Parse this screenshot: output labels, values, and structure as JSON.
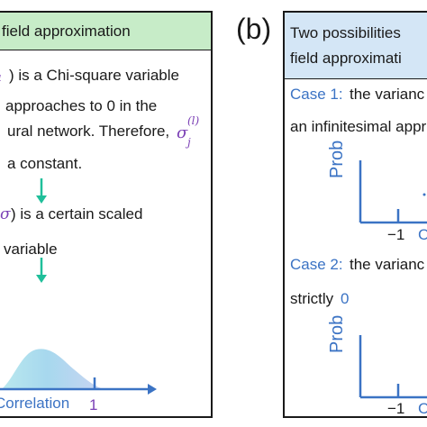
{
  "panel_a": {
    "title": "field approximation",
    "line1_tail": ") is a Chi-square variable",
    "line2": "approaches to 0 in the",
    "line3": "ural network. Therefore,",
    "sigma_lj": "σ",
    "sigma_sup": "(l)",
    "sigma_sub": "j",
    "line4": "a constant.",
    "line5_tail": ") is a certain scaled",
    "line5_sigma": "σ",
    "line6": "variable",
    "x_label": "Correlation",
    "x_tick": "1",
    "arrow_color": "#1fbf9a",
    "axis_color": "#3b73c4"
  },
  "panel_b": {
    "label": "(b)",
    "title_line1": "Two possibilities",
    "title_line2": "field approximati",
    "case1_label": "Case 1:",
    "case1_text": "the varianc",
    "case1_line2": "an infinitesimal appr",
    "case2_label": "Case 2:",
    "case2_text": "the varianc",
    "case2_line2_text": "strictly",
    "case2_line2_value": "0",
    "y_label": "Prob",
    "x_tick": "−1",
    "x_partial": "C"
  }
}
